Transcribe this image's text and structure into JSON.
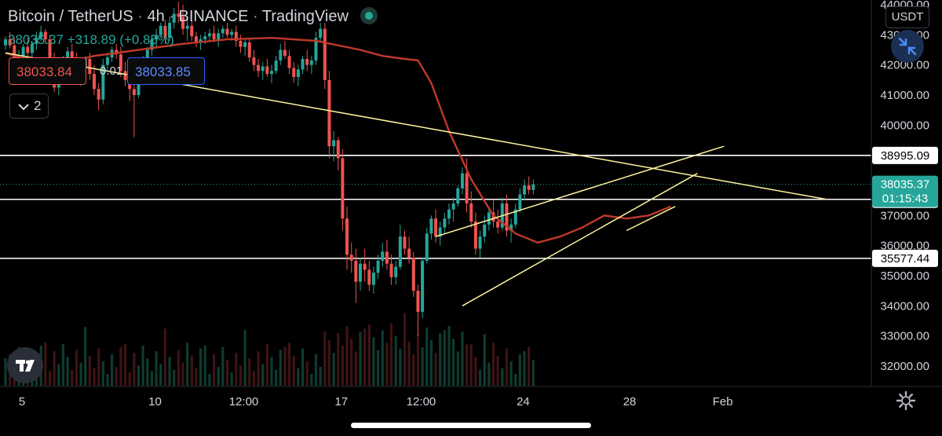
{
  "header": {
    "symbol": "Bitcoin / TetherUS",
    "interval": "4h",
    "exchange": "BINANCE",
    "platform": "TradingView",
    "last": "38035.37",
    "change": "+318.89 (+0.85%)"
  },
  "order_panel": {
    "sell_price": "38033.84",
    "spread": "0.01",
    "buy_price": "38033.85"
  },
  "indicator_toggle": {
    "count": "2"
  },
  "currency_button": "USDT",
  "colors": {
    "up": "#26a69a",
    "down": "#ef5350",
    "ma": "#c0392b",
    "trendline": "#fff59d",
    "level": "#ffffff",
    "price_tag": "#26a69a",
    "background": "#000000"
  },
  "icons": {
    "collapse": "chevron-down-icon",
    "expand": "arrows-compress-icon",
    "logo": "tradingview-logo-icon",
    "settings": "gear-icon",
    "live": "live-status-dot-icon"
  },
  "chart_data": {
    "type": "candlestick",
    "y_axis": {
      "side": "right",
      "min": 31600,
      "max": 44200,
      "ticks": [
        32000,
        33000,
        34000,
        35000,
        36000,
        37000,
        40000,
        41000,
        42000,
        43000,
        44000
      ],
      "tick_labels": [
        "32000.00",
        "33000.00",
        "34000.00",
        "35000.00",
        "36000.00",
        "37000.00",
        "40000.00",
        "41000.00",
        "42000.00",
        "43000.00",
        "44000.00"
      ]
    },
    "x_axis": {
      "labels": [
        "5",
        "10",
        "12:00",
        "17",
        "12:00",
        "24",
        "28",
        "Feb"
      ],
      "label_positions_bars": [
        0,
        30,
        50,
        72,
        90,
        113,
        137,
        158
      ]
    },
    "horizontal_levels": [
      {
        "value": 38995.09,
        "label": "38995.09"
      },
      {
        "value": 37536.81,
        "label": "37536.81"
      },
      {
        "value": 35577.44,
        "label": "35577.44"
      }
    ],
    "current_price": {
      "value": 38035.37,
      "label": "38035.37",
      "countdown": "01:15:43"
    },
    "trendlines": [
      {
        "from": [
          0,
          42400
        ],
        "to": [
          185,
          37540
        ]
      },
      {
        "from": [
          97,
          36300
        ],
        "to": [
          162,
          39300
        ]
      },
      {
        "from": [
          103,
          34000
        ],
        "to": [
          156,
          38400
        ]
      },
      {
        "from": [
          140,
          36500
        ],
        "to": [
          151,
          37300
        ]
      }
    ],
    "moving_average": {
      "bars": [
        0,
        10,
        20,
        30,
        40,
        50,
        60,
        70,
        80,
        85,
        90,
        93,
        96,
        100,
        105,
        110,
        115,
        120,
        125,
        130,
        135,
        140,
        145,
        150
      ],
      "values": [
        42400,
        41950,
        42300,
        42500,
        42700,
        42850,
        42900,
        42800,
        42500,
        42300,
        42200,
        42150,
        41400,
        39800,
        38200,
        37000,
        36400,
        36100,
        36300,
        36600,
        37000,
        36900,
        37000,
        37300
      ]
    },
    "candles": [
      [
        42650,
        42950,
        42500,
        42850
      ],
      [
        42850,
        43100,
        42550,
        42650
      ],
      [
        42650,
        42900,
        41800,
        42000
      ],
      [
        42000,
        42500,
        41800,
        42300
      ],
      [
        42300,
        42700,
        42100,
        42600
      ],
      [
        42600,
        42900,
        42300,
        42400
      ],
      [
        42400,
        42800,
        42200,
        42700
      ],
      [
        42700,
        43100,
        42500,
        42900
      ],
      [
        42900,
        43300,
        42800,
        43100
      ],
      [
        43100,
        43200,
        42700,
        42850
      ],
      [
        42850,
        43000,
        42000,
        42150
      ],
      [
        42150,
        42400,
        41100,
        41250
      ],
      [
        41250,
        41700,
        41000,
        41600
      ],
      [
        41600,
        42300,
        41500,
        42150
      ],
      [
        42150,
        42600,
        42000,
        42450
      ],
      [
        42450,
        42700,
        42000,
        42200
      ],
      [
        42200,
        42400,
        41400,
        41600
      ],
      [
        41600,
        42000,
        41300,
        41900
      ],
      [
        41900,
        42300,
        41700,
        42200
      ],
      [
        42200,
        42400,
        41500,
        41700
      ],
      [
        41700,
        42000,
        41000,
        41200
      ],
      [
        41200,
        41400,
        40500,
        40850
      ],
      [
        40850,
        42200,
        40700,
        42000
      ],
      [
        42000,
        42400,
        41800,
        42250
      ],
      [
        42250,
        42600,
        42100,
        42500
      ],
      [
        42500,
        42700,
        42200,
        42350
      ],
      [
        42350,
        42600,
        41600,
        41800
      ],
      [
        41800,
        42100,
        41300,
        41500
      ],
      [
        41500,
        41800,
        40800,
        41200
      ],
      [
        41200,
        41400,
        39600,
        41000
      ],
      [
        41000,
        42000,
        40900,
        41800
      ],
      [
        41800,
        42300,
        41600,
        42100
      ],
      [
        42100,
        42600,
        41900,
        42500
      ],
      [
        42500,
        43000,
        42300,
        42850
      ],
      [
        42850,
        43200,
        42600,
        43000
      ],
      [
        43000,
        43400,
        42900,
        43300
      ],
      [
        43300,
        43500,
        42700,
        42900
      ],
      [
        42900,
        43600,
        42800,
        43400
      ],
      [
        43400,
        43900,
        43200,
        43700
      ],
      [
        43700,
        44100,
        43400,
        43600
      ],
      [
        43600,
        44000,
        43000,
        43200
      ],
      [
        43200,
        43500,
        42800,
        43300
      ],
      [
        43300,
        43500,
        42800,
        42950
      ],
      [
        42950,
        43100,
        42600,
        42750
      ],
      [
        42750,
        43000,
        42500,
        42850
      ],
      [
        42850,
        43100,
        42700,
        42950
      ],
      [
        42950,
        43200,
        42800,
        43050
      ],
      [
        43050,
        43300,
        42750,
        42850
      ],
      [
        42850,
        43200,
        42600,
        43050
      ],
      [
        43050,
        43300,
        42900,
        43200
      ],
      [
        43200,
        43400,
        42900,
        43000
      ],
      [
        43000,
        43200,
        42800,
        43100
      ],
      [
        43100,
        43300,
        42600,
        42800
      ],
      [
        42800,
        43000,
        42400,
        42600
      ],
      [
        42600,
        42900,
        42300,
        42750
      ],
      [
        42750,
        42900,
        42100,
        42250
      ],
      [
        42250,
        42500,
        41800,
        42000
      ],
      [
        42000,
        42200,
        41600,
        41800
      ],
      [
        41800,
        42100,
        41500,
        41950
      ],
      [
        41950,
        42200,
        41600,
        41700
      ],
      [
        41700,
        42000,
        41400,
        41800
      ],
      [
        41800,
        42300,
        41700,
        42150
      ],
      [
        42150,
        42700,
        42000,
        42500
      ],
      [
        42500,
        42800,
        42200,
        42300
      ],
      [
        42300,
        42500,
        41700,
        41900
      ],
      [
        41900,
        42100,
        41400,
        41600
      ],
      [
        41600,
        42000,
        41300,
        41850
      ],
      [
        41850,
        42300,
        41700,
        42200
      ],
      [
        42200,
        42500,
        41800,
        42000
      ],
      [
        42000,
        42300,
        41700,
        42150
      ],
      [
        42150,
        43100,
        42000,
        42900
      ],
      [
        42900,
        43400,
        42800,
        43200
      ],
      [
        43200,
        43400,
        41200,
        41500
      ],
      [
        41500,
        41800,
        38900,
        39300
      ],
      [
        39300,
        39800,
        38800,
        39500
      ],
      [
        39500,
        39600,
        38500,
        38900
      ],
      [
        38900,
        39200,
        36500,
        36900
      ],
      [
        36900,
        37300,
        35200,
        35700
      ],
      [
        35700,
        36100,
        35100,
        35500
      ],
      [
        35500,
        35900,
        34100,
        34800
      ],
      [
        34800,
        35600,
        34500,
        35400
      ],
      [
        35400,
        35900,
        34800,
        35200
      ],
      [
        35200,
        35500,
        34500,
        34700
      ],
      [
        34700,
        35300,
        34400,
        35100
      ],
      [
        35100,
        35700,
        34900,
        35500
      ],
      [
        35500,
        36100,
        35300,
        35800
      ],
      [
        35800,
        36200,
        35200,
        35400
      ],
      [
        35400,
        35700,
        34700,
        34950
      ],
      [
        34950,
        35500,
        34700,
        35300
      ],
      [
        35300,
        36700,
        35200,
        36300
      ],
      [
        36300,
        36500,
        35700,
        35900
      ],
      [
        35900,
        36300,
        35400,
        35600
      ],
      [
        35600,
        35800,
        34300,
        34500
      ],
      [
        34500,
        34700,
        33000,
        33800
      ],
      [
        33800,
        35600,
        33600,
        35500
      ],
      [
        35500,
        36600,
        35400,
        36400
      ],
      [
        36400,
        37000,
        36200,
        36900
      ],
      [
        36900,
        37200,
        36100,
        36300
      ],
      [
        36300,
        36800,
        36000,
        36600
      ],
      [
        36600,
        37100,
        36400,
        36900
      ],
      [
        36900,
        37400,
        36700,
        37200
      ],
      [
        37200,
        37600,
        36800,
        37400
      ],
      [
        37400,
        38000,
        37300,
        37900
      ],
      [
        37900,
        38600,
        37700,
        38400
      ],
      [
        38400,
        38900,
        37100,
        37400
      ],
      [
        37400,
        37800,
        36600,
        36800
      ],
      [
        36800,
        37100,
        35700,
        35900
      ],
      [
        35900,
        36500,
        35600,
        36300
      ],
      [
        36300,
        37000,
        36100,
        36700
      ],
      [
        36700,
        37300,
        36500,
        37100
      ],
      [
        37100,
        37500,
        36600,
        36800
      ],
      [
        36800,
        37200,
        36400,
        36600
      ],
      [
        36600,
        37600,
        36500,
        37400
      ],
      [
        37400,
        37700,
        36300,
        36500
      ],
      [
        36500,
        36900,
        36100,
        36700
      ],
      [
        36700,
        37400,
        36600,
        37200
      ],
      [
        37200,
        37900,
        37100,
        37700
      ],
      [
        37700,
        38200,
        37500,
        38000
      ],
      [
        38000,
        38300,
        37700,
        37850
      ],
      [
        37850,
        38200,
        37700,
        38035
      ]
    ],
    "volume_scale_max": 100
  }
}
